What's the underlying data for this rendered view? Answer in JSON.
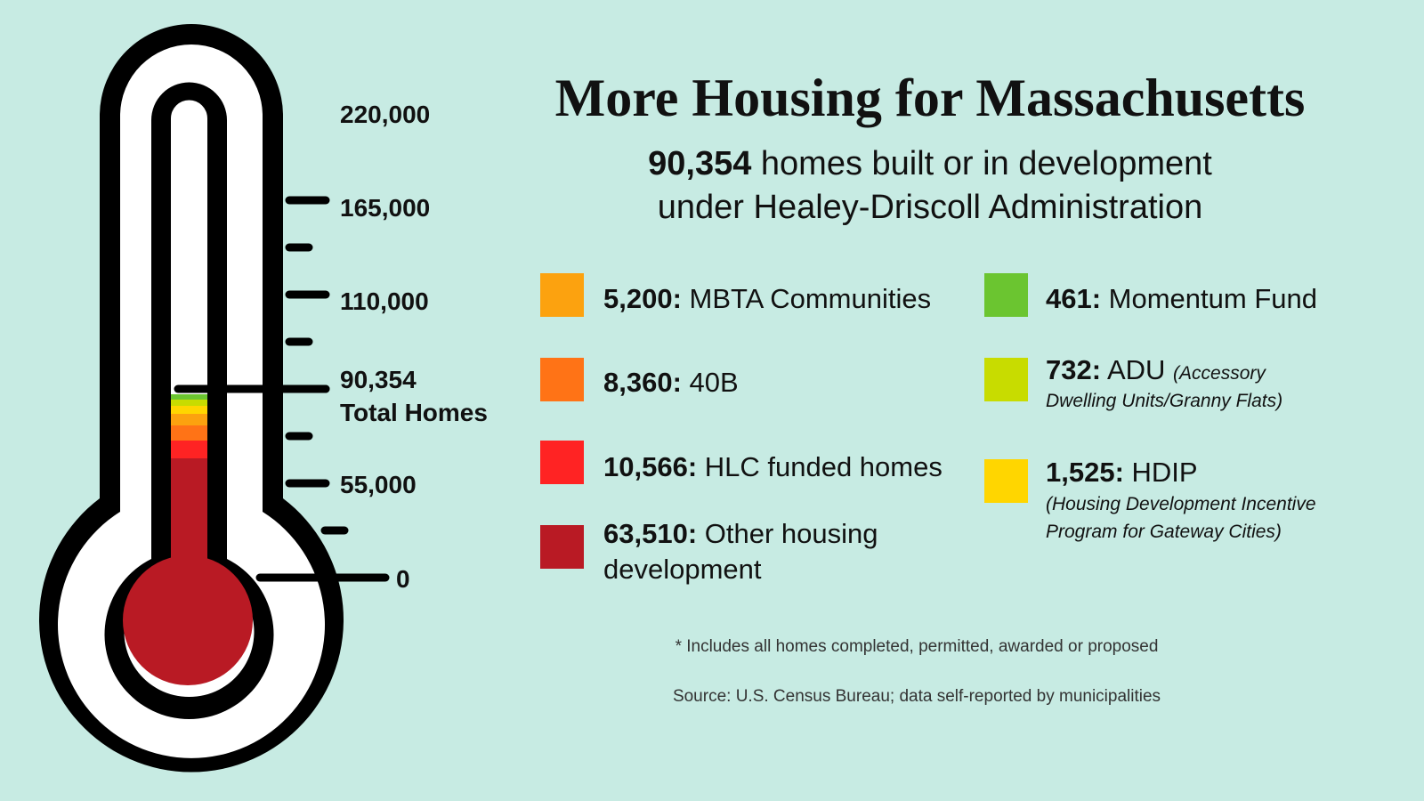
{
  "title": "More Housing for Massachusetts",
  "subtitle": {
    "total": "90,354",
    "line1_rest": " homes built or in development",
    "line2": "under Healey-Driscoll Administration"
  },
  "legend": [
    {
      "value": "5,200:",
      "label": " MBTA Communities",
      "color": "#fca20f"
    },
    {
      "value": "8,360:",
      "label": " 40B",
      "color": "#ff7316"
    },
    {
      "value": "10,566:",
      "label": " HLC funded homes",
      "color": "#ff2323"
    },
    {
      "value": "63,510:",
      "label": " Other housing",
      "label2": "development",
      "color": "#b91a24"
    },
    {
      "value": "461:",
      "label": " Momentum Fund",
      "color": "#6bc530"
    },
    {
      "value": "732:",
      "label": " ADU ",
      "note": "(Accessory",
      "note2": "Dwelling Units/Granny Flats)",
      "color": "#c8dc00"
    },
    {
      "value": "1,525:",
      "label": " HDIP",
      "note2": "(Housing Development Incentive",
      "note3": "Program for Gateway Cities)",
      "color": "#ffd600"
    }
  ],
  "footer": {
    "note": "* Includes all homes completed, permitted, awarded or proposed",
    "source": "Source: U.S. Census Bureau; data self-reported by municipalities"
  },
  "chart_data": {
    "type": "bar",
    "title": "More Housing for Massachusetts",
    "ylim": [
      0,
      220000
    ],
    "ticks": [
      "0",
      "55,000",
      "110,000",
      "165,000",
      "220,000"
    ],
    "tick_values": [
      0,
      55000,
      110000,
      165000,
      220000
    ],
    "total_value": 90354,
    "total_label": "90,354",
    "total_caption": "Total Homes",
    "stacked_series": [
      {
        "name": "Other housing development",
        "value": 63510,
        "color": "#b91a24"
      },
      {
        "name": "HLC funded homes",
        "value": 10566,
        "color": "#ff2323"
      },
      {
        "name": "40B",
        "value": 8360,
        "color": "#ff7316"
      },
      {
        "name": "MBTA Communities",
        "value": 5200,
        "color": "#fca20f"
      },
      {
        "name": "HDIP",
        "value": 1525,
        "color": "#ffd600"
      },
      {
        "name": "ADU",
        "value": 732,
        "color": "#c8dc00"
      },
      {
        "name": "Momentum Fund",
        "value": 461,
        "color": "#6bc530"
      }
    ]
  }
}
